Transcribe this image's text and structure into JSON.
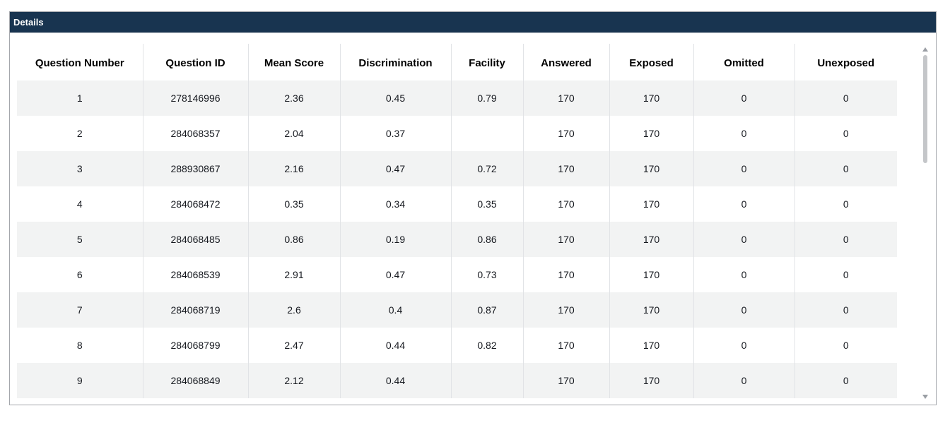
{
  "panel": {
    "title": "Details"
  },
  "table": {
    "headers": [
      "Question Number",
      "Question ID",
      "Mean Score",
      "Discrimination",
      "Facility",
      "Answered",
      "Exposed",
      "Omitted",
      "Unexposed"
    ],
    "rows": [
      [
        "1",
        "278146996",
        "2.36",
        "0.45",
        "0.79",
        "170",
        "170",
        "0",
        "0"
      ],
      [
        "2",
        "284068357",
        "2.04",
        "0.37",
        "",
        "170",
        "170",
        "0",
        "0"
      ],
      [
        "3",
        "288930867",
        "2.16",
        "0.47",
        "0.72",
        "170",
        "170",
        "0",
        "0"
      ],
      [
        "4",
        "284068472",
        "0.35",
        "0.34",
        "0.35",
        "170",
        "170",
        "0",
        "0"
      ],
      [
        "5",
        "284068485",
        "0.86",
        "0.19",
        "0.86",
        "170",
        "170",
        "0",
        "0"
      ],
      [
        "6",
        "284068539",
        "2.91",
        "0.47",
        "0.73",
        "170",
        "170",
        "0",
        "0"
      ],
      [
        "7",
        "284068719",
        "2.6",
        "0.4",
        "0.87",
        "170",
        "170",
        "0",
        "0"
      ],
      [
        "8",
        "284068799",
        "2.47",
        "0.44",
        "0.82",
        "170",
        "170",
        "0",
        "0"
      ],
      [
        "9",
        "284068849",
        "2.12",
        "0.44",
        "",
        "170",
        "170",
        "0",
        "0"
      ]
    ]
  },
  "colors": {
    "header_bg": "#183450",
    "header_text": "#ffffff",
    "row_alt_bg": "#f2f3f3"
  }
}
